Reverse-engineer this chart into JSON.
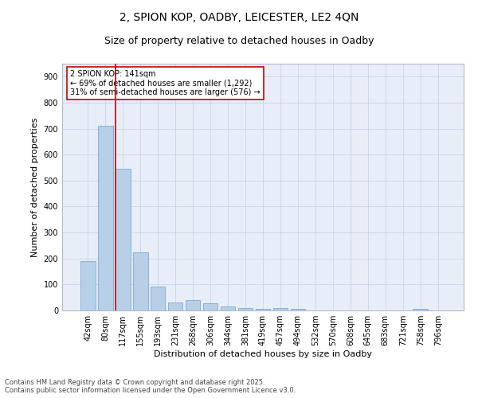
{
  "title1": "2, SPION KOP, OADBY, LEICESTER, LE2 4QN",
  "title2": "Size of property relative to detached houses in Oadby",
  "xlabel": "Distribution of detached houses by size in Oadby",
  "ylabel": "Number of detached properties",
  "categories": [
    "42sqm",
    "80sqm",
    "117sqm",
    "155sqm",
    "193sqm",
    "231sqm",
    "268sqm",
    "306sqm",
    "344sqm",
    "381sqm",
    "419sqm",
    "457sqm",
    "494sqm",
    "532sqm",
    "570sqm",
    "608sqm",
    "645sqm",
    "683sqm",
    "721sqm",
    "758sqm",
    "796sqm"
  ],
  "values": [
    190,
    712,
    547,
    224,
    91,
    30,
    40,
    27,
    15,
    10,
    7,
    10,
    7,
    0,
    0,
    0,
    0,
    0,
    0,
    5,
    0
  ],
  "bar_color": "#b8cfe8",
  "bar_edge_color": "#7aaad4",
  "vline_color": "#cc0000",
  "annotation_line1": "2 SPION KOP: 141sqm",
  "annotation_line2": "← 69% of detached houses are smaller (1,292)",
  "annotation_line3": "31% of semi-detached houses are larger (576) →",
  "annotation_box_color": "#cc0000",
  "ylim": [
    0,
    950
  ],
  "yticks": [
    0,
    100,
    200,
    300,
    400,
    500,
    600,
    700,
    800,
    900
  ],
  "background_color": "#e8eef8",
  "grid_color": "#c8d4e8",
  "footer1": "Contains HM Land Registry data © Crown copyright and database right 2025.",
  "footer2": "Contains public sector information licensed under the Open Government Licence v3.0.",
  "title1_fontsize": 10,
  "title2_fontsize": 9,
  "tick_fontsize": 7,
  "ylabel_fontsize": 8,
  "xlabel_fontsize": 8,
  "annotation_fontsize": 7,
  "footer_fontsize": 6
}
